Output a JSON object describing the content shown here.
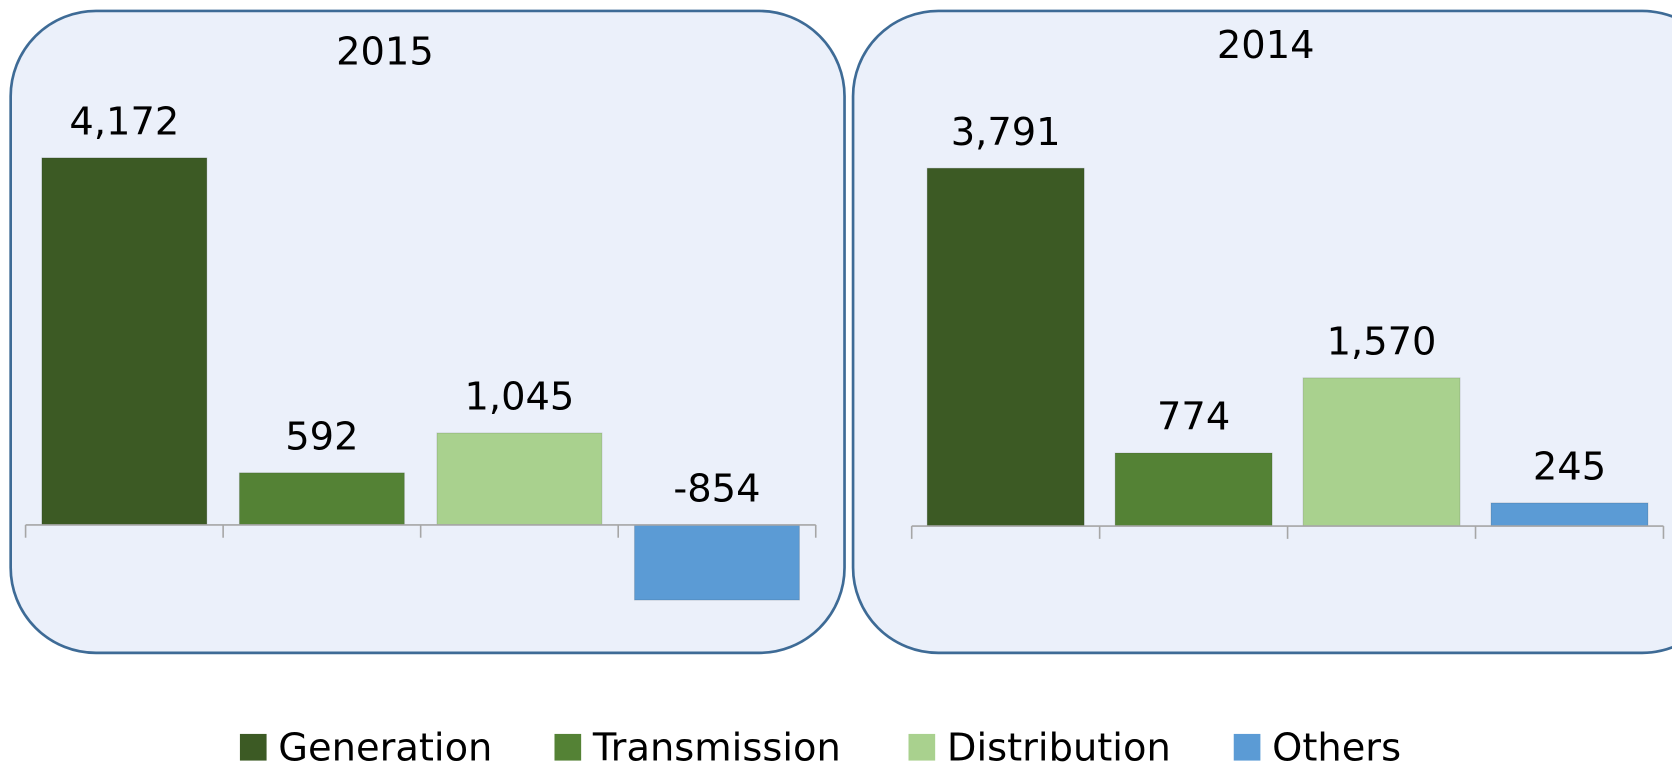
{
  "chart_data": [
    {
      "type": "bar",
      "title": "2015",
      "values": [
        4172,
        592,
        1045,
        -854
      ],
      "value_labels": [
        "4,172",
        "592",
        "1,045",
        "-854"
      ],
      "ylim": [
        -1000,
        4500
      ]
    },
    {
      "type": "bar",
      "title": "2014",
      "values": [
        3791,
        774,
        1570,
        245
      ],
      "value_labels": [
        "3,791",
        "774",
        "1,570",
        "245"
      ],
      "ylim": [
        -1000,
        4000
      ]
    }
  ],
  "legend": {
    "categories": [
      "Generation",
      "Transmission",
      "Distribution",
      "Others"
    ],
    "colors": [
      "#3c5a24",
      "#548235",
      "#a9d18e",
      "#5b9bd5"
    ]
  }
}
